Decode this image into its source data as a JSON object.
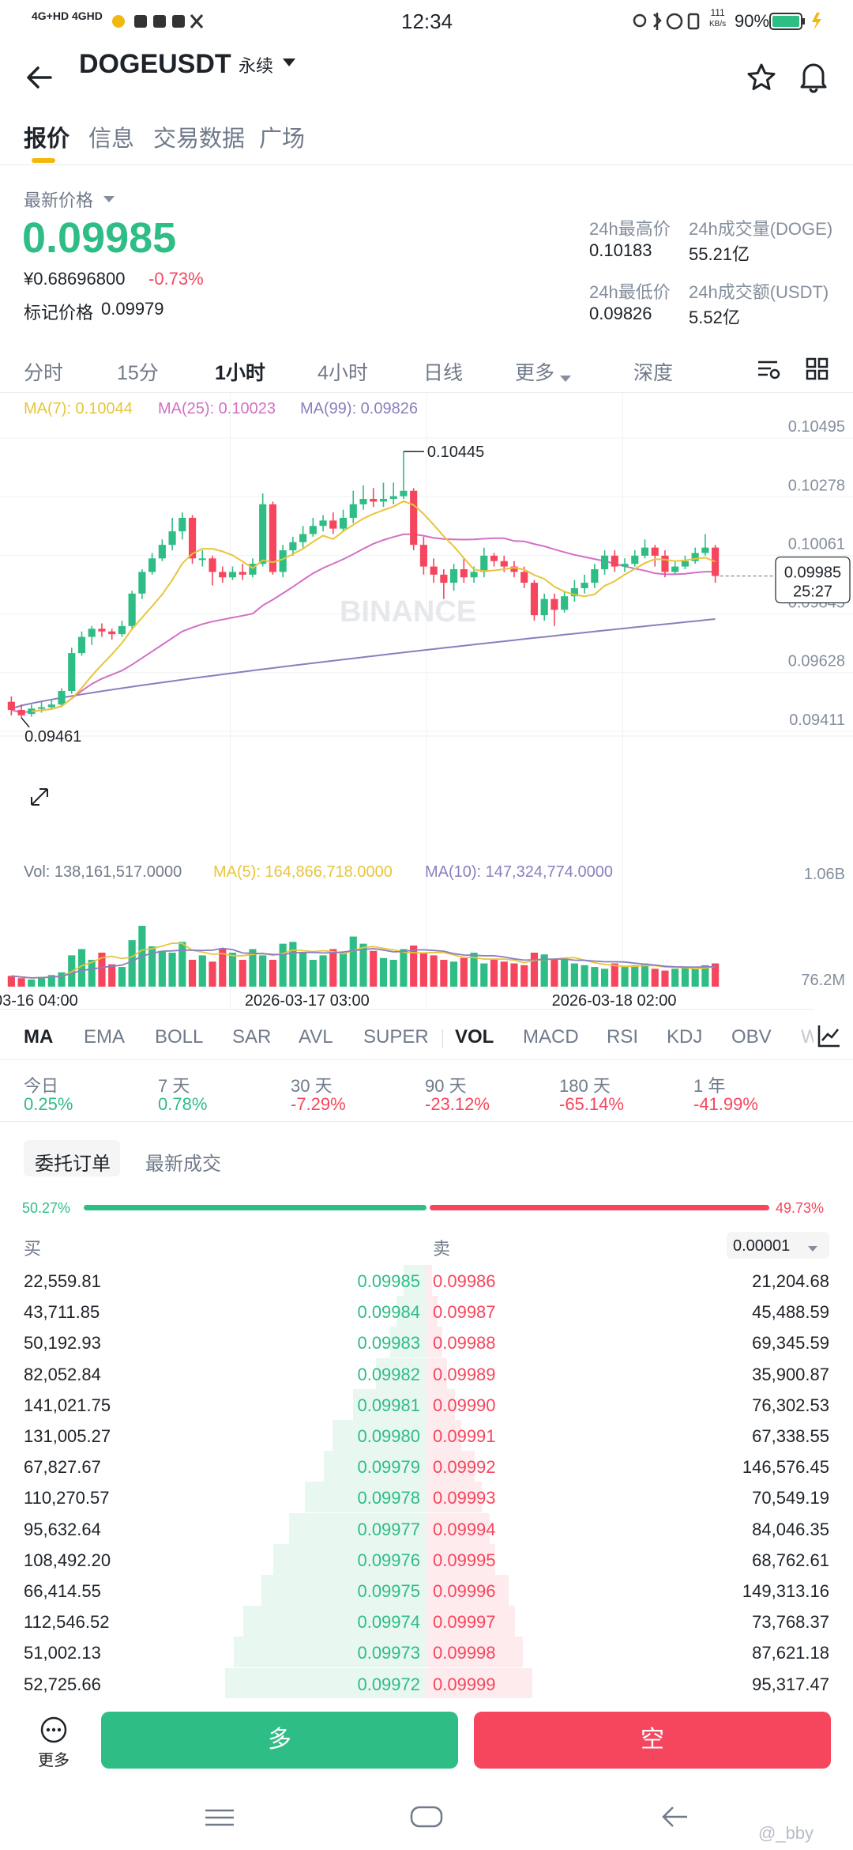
{
  "status_bar": {
    "network": "4G+HD 4GHD",
    "time": "12:34",
    "speed_top": "111",
    "speed_unit": "KB/s",
    "battery": "90%"
  },
  "header": {
    "symbol": "DOGEUSDT",
    "contract_type": "永续"
  },
  "top_tabs": [
    "报价",
    "信息",
    "交易数据",
    "广场"
  ],
  "price": {
    "label": "最新价格",
    "last": "0.09985",
    "cny": "¥0.68696800",
    "change": "-0.73%",
    "mark_label": "标记价格",
    "mark_value": "0.09979"
  },
  "stats": {
    "high_label": "24h最高价",
    "high": "0.10183",
    "vol_label": "24h成交量(DOGE)",
    "vol": "55.21亿",
    "low_label": "24h最低价",
    "low": "0.09826",
    "amt_label": "24h成交额(USDT)",
    "amt": "5.52亿"
  },
  "periods": [
    "分时",
    "15分",
    "1小时",
    "4小时",
    "日线",
    "更多",
    "深度"
  ],
  "chart_data": {
    "type": "candlestick",
    "ma_labels": {
      "ma7": "MA(7): 0.10044",
      "ma25": "MA(25): 0.10023",
      "ma99": "MA(99): 0.09826"
    },
    "y_ticks": [
      "0.10495",
      "0.10278",
      "0.10061",
      "0.09845",
      "0.09628",
      "0.09411"
    ],
    "ylim": [
      0.09411,
      0.10495
    ],
    "high_marker": "0.10445",
    "low_marker": "0.09461",
    "current_price": "0.09985",
    "countdown": "25:27",
    "watermark": "BINANCE",
    "x_ticks": [
      "03-16 04:00",
      "2026-03-17 03:00",
      "2026-03-18 02:00"
    ],
    "candles": [
      [
        0.0952,
        0.0949,
        0.0954,
        0.0947
      ],
      [
        0.0949,
        0.0947,
        0.0951,
        0.09461
      ],
      [
        0.09475,
        0.09495,
        0.0951,
        0.09465
      ],
      [
        0.09495,
        0.095,
        0.0952,
        0.0948
      ],
      [
        0.095,
        0.0951,
        0.0953,
        0.0949
      ],
      [
        0.0951,
        0.0956,
        0.0957,
        0.095
      ],
      [
        0.0956,
        0.097,
        0.0972,
        0.0955
      ],
      [
        0.097,
        0.0976,
        0.0978,
        0.0969
      ],
      [
        0.0976,
        0.0979,
        0.098,
        0.0973
      ],
      [
        0.0979,
        0.0978,
        0.0981,
        0.0976
      ],
      [
        0.0978,
        0.0977,
        0.0979,
        0.0975
      ],
      [
        0.0977,
        0.098,
        0.0982,
        0.0976
      ],
      [
        0.098,
        0.0992,
        0.0993,
        0.0979
      ],
      [
        0.0992,
        0.1,
        0.1001,
        0.099
      ],
      [
        0.1,
        0.1005,
        0.1007,
        0.0999
      ],
      [
        0.1005,
        0.101,
        0.1012,
        0.1004
      ],
      [
        0.101,
        0.1015,
        0.102,
        0.1008
      ],
      [
        0.1015,
        0.102,
        0.1022,
        0.1012
      ],
      [
        0.102,
        0.1005,
        0.1021,
        0.1003
      ],
      [
        0.1005,
        0.1005,
        0.1008,
        0.1002
      ],
      [
        0.1005,
        0.1,
        0.1006,
        0.0995
      ],
      [
        0.1,
        0.0998,
        0.1002,
        0.0996
      ],
      [
        0.0998,
        0.1,
        0.1002,
        0.0997
      ],
      [
        0.1,
        0.0999,
        0.1003,
        0.0997
      ],
      [
        0.0999,
        0.1003,
        0.1005,
        0.0998
      ],
      [
        0.1003,
        0.1025,
        0.1029,
        0.1002
      ],
      [
        0.1025,
        0.1,
        0.1026,
        0.0999
      ],
      [
        0.1,
        0.1008,
        0.101,
        0.0998
      ],
      [
        0.1008,
        0.1011,
        0.1013,
        0.1006
      ],
      [
        0.1011,
        0.1014,
        0.1017,
        0.1009
      ],
      [
        0.1014,
        0.1017,
        0.102,
        0.1013
      ],
      [
        0.1017,
        0.1019,
        0.1021,
        0.1015
      ],
      [
        0.1019,
        0.1016,
        0.1022,
        0.1014
      ],
      [
        0.1016,
        0.102,
        0.1023,
        0.1015
      ],
      [
        0.102,
        0.1025,
        0.103,
        0.1018
      ],
      [
        0.1025,
        0.1027,
        0.1032,
        0.1023
      ],
      [
        0.1027,
        0.1026,
        0.1031,
        0.1024
      ],
      [
        0.1026,
        0.1027,
        0.1033,
        0.1024
      ],
      [
        0.1027,
        0.1028,
        0.1033,
        0.1025
      ],
      [
        0.1028,
        0.103,
        0.10445,
        0.1027
      ],
      [
        0.103,
        0.101,
        0.1031,
        0.1008
      ],
      [
        0.101,
        0.1002,
        0.1013,
        0.0999
      ],
      [
        0.1002,
        0.0999,
        0.1005,
        0.0996
      ],
      [
        0.0999,
        0.0996,
        0.1001,
        0.099
      ],
      [
        0.0996,
        0.1001,
        0.1003,
        0.0993
      ],
      [
        0.1001,
        0.0998,
        0.1005,
        0.0996
      ],
      [
        0.0998,
        0.1,
        0.1002,
        0.0996
      ],
      [
        0.1,
        0.1006,
        0.1009,
        0.0998
      ],
      [
        0.1006,
        0.1004,
        0.1007,
        0.1002
      ],
      [
        0.1004,
        0.1002,
        0.1006,
        0.1
      ],
      [
        0.1002,
        0.1,
        0.1004,
        0.0998
      ],
      [
        0.1,
        0.0996,
        0.1002,
        0.0994
      ],
      [
        0.0996,
        0.0984,
        0.0997,
        0.0982
      ],
      [
        0.0984,
        0.099,
        0.0992,
        0.0982
      ],
      [
        0.099,
        0.0986,
        0.0992,
        0.098
      ],
      [
        0.0986,
        0.0991,
        0.0993,
        0.0985
      ],
      [
        0.0991,
        0.0994,
        0.0997,
        0.0989
      ],
      [
        0.0994,
        0.0996,
        0.0999,
        0.0992
      ],
      [
        0.0996,
        0.1001,
        0.1003,
        0.0994
      ],
      [
        0.1001,
        0.1006,
        0.1008,
        0.0999
      ],
      [
        0.1006,
        0.1002,
        0.1008,
        0.1
      ],
      [
        0.1002,
        0.1003,
        0.1005,
        0.1
      ],
      [
        0.1003,
        0.1006,
        0.1008,
        0.1002
      ],
      [
        0.1006,
        0.1009,
        0.1012,
        0.1005
      ],
      [
        0.1009,
        0.1006,
        0.101,
        0.1002
      ],
      [
        0.1006,
        0.1,
        0.1008,
        0.0998
      ],
      [
        0.1,
        0.1002,
        0.1004,
        0.0999
      ],
      [
        0.1002,
        0.1004,
        0.1006,
        0.1001
      ],
      [
        0.1004,
        0.1007,
        0.1009,
        0.1003
      ],
      [
        0.1007,
        0.1009,
        0.1014,
        0.1006
      ],
      [
        0.1009,
        0.09985,
        0.101,
        0.0996
      ]
    ],
    "ma7_series_start_index": 2,
    "volume": {
      "label": "Vol: 138,161,517.0000",
      "ma5_label": "MA(5): 164,866,718.0000",
      "ma10_label": "MA(10): 147,324,774.0000",
      "y_ticks": [
        "1.06B",
        "76.2M"
      ],
      "values_millions": [
        120,
        95,
        80,
        110,
        130,
        160,
        350,
        420,
        300,
        380,
        250,
        220,
        520,
        680,
        450,
        400,
        380,
        500,
        300,
        350,
        280,
        420,
        380,
        300,
        420,
        350,
        300,
        480,
        500,
        380,
        300,
        350,
        420,
        380,
        560,
        480,
        400,
        320,
        300,
        420,
        460,
        380,
        350,
        300,
        280,
        320,
        380,
        260,
        300,
        280,
        260,
        240,
        380,
        360,
        300,
        320,
        260,
        240,
        220,
        200,
        260,
        220,
        240,
        260,
        200,
        180,
        200,
        220,
        200,
        240,
        260
      ]
    }
  },
  "indicator_tabs": [
    "MA",
    "EMA",
    "BOLL",
    "SAR",
    "AVL",
    "SUPER",
    "VOL",
    "MACD",
    "RSI",
    "KDJ",
    "OBV",
    "W"
  ],
  "performance": [
    {
      "label": "今日",
      "value": "0.25%",
      "dir": "up"
    },
    {
      "label": "7 天",
      "value": "0.78%",
      "dir": "up"
    },
    {
      "label": "30 天",
      "value": "-7.29%",
      "dir": "down"
    },
    {
      "label": "90 天",
      "value": "-23.12%",
      "dir": "down"
    },
    {
      "label": "180 天",
      "value": "-65.14%",
      "dir": "down"
    },
    {
      "label": "1 年",
      "value": "-41.99%",
      "dir": "down"
    }
  ],
  "orderbook": {
    "tab_orders": "委托订单",
    "tab_trades": "最新成交",
    "buy_ratio": "50.27%",
    "sell_ratio": "49.73%",
    "buy_label": "买",
    "sell_label": "卖",
    "precision": "0.00001",
    "rows": [
      {
        "bq": "22,559.81",
        "bp": "0.09985",
        "ap": "0.09986",
        "aq": "21,204.68",
        "bd": 0.1,
        "ad": 0.04
      },
      {
        "bq": "43,711.85",
        "bp": "0.09984",
        "ap": "0.09987",
        "aq": "45,488.59",
        "bd": 0.13,
        "ad": 0.08
      },
      {
        "bq": "50,192.93",
        "bp": "0.09983",
        "ap": "0.09988",
        "aq": "69,345.59",
        "bd": 0.16,
        "ad": 0.12
      },
      {
        "bq": "82,052.84",
        "bp": "0.09982",
        "ap": "0.09989",
        "aq": "35,900.87",
        "bd": 0.22,
        "ad": 0.15
      },
      {
        "bq": "141,021.75",
        "bp": "0.09981",
        "ap": "0.09990",
        "aq": "76,302.53",
        "bd": 0.32,
        "ad": 0.21
      },
      {
        "bq": "131,005.27",
        "bp": "0.09980",
        "ap": "0.09991",
        "aq": "67,338.55",
        "bd": 0.41,
        "ad": 0.26
      },
      {
        "bq": "67,827.67",
        "bp": "0.09979",
        "ap": "0.09992",
        "aq": "146,576.45",
        "bd": 0.45,
        "ad": 0.36
      },
      {
        "bq": "110,270.57",
        "bp": "0.09978",
        "ap": "0.09993",
        "aq": "70,549.19",
        "bd": 0.53,
        "ad": 0.41
      },
      {
        "bq": "95,632.64",
        "bp": "0.09977",
        "ap": "0.09994",
        "aq": "84,046.35",
        "bd": 0.6,
        "ad": 0.47
      },
      {
        "bq": "108,492.20",
        "bp": "0.09976",
        "ap": "0.09995",
        "aq": "68,762.61",
        "bd": 0.67,
        "ad": 0.51
      },
      {
        "bq": "66,414.55",
        "bp": "0.09975",
        "ap": "0.09996",
        "aq": "149,313.16",
        "bd": 0.72,
        "ad": 0.61
      },
      {
        "bq": "112,546.52",
        "bp": "0.09974",
        "ap": "0.09997",
        "aq": "73,768.37",
        "bd": 0.8,
        "ad": 0.66
      },
      {
        "bq": "51,002.13",
        "bp": "0.09973",
        "ap": "0.09998",
        "aq": "87,621.18",
        "bd": 0.84,
        "ad": 0.72
      },
      {
        "bq": "52,725.66",
        "bp": "0.09972",
        "ap": "0.09999",
        "aq": "95,317.47",
        "bd": 0.88,
        "ad": 0.79
      }
    ]
  },
  "bottom": {
    "more_label": "更多",
    "long_label": "多",
    "short_label": "空",
    "watermark": "@_bby"
  },
  "colors": {
    "up": "#2ebd85",
    "down": "#f6465d",
    "ma7": "#e8c53a",
    "ma25": "#d36fc6",
    "ma99": "#8a7fbf",
    "accent": "#f0b90b"
  }
}
